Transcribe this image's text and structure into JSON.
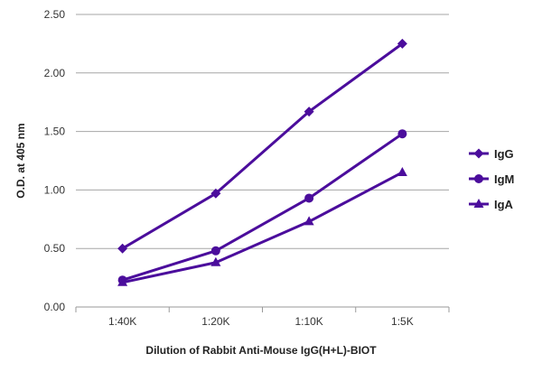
{
  "chart_data": {
    "type": "line",
    "title": "",
    "xlabel": "Dilution of Rabbit Anti-Mouse IgG(H+L)-BIOT",
    "ylabel": "O.D. at 405 nm",
    "categories": [
      "1:40K",
      "1:20K",
      "1:10K",
      "1:5K"
    ],
    "ylim": [
      0,
      2.5
    ],
    "yticks": [
      "0.00",
      "0.50",
      "1.00",
      "1.50",
      "2.00",
      "2.50"
    ],
    "grid": "horizontal",
    "legend": "right",
    "series": [
      {
        "name": "IgG",
        "marker": "diamond",
        "color": "#4b0d9c",
        "values": [
          0.5,
          0.97,
          1.67,
          2.25
        ]
      },
      {
        "name": "IgM",
        "marker": "circle",
        "color": "#4b0d9c",
        "values": [
          0.23,
          0.48,
          0.93,
          1.48
        ]
      },
      {
        "name": "IgA",
        "marker": "triangle",
        "color": "#4b0d9c",
        "values": [
          0.21,
          0.38,
          0.73,
          1.15
        ]
      }
    ]
  }
}
